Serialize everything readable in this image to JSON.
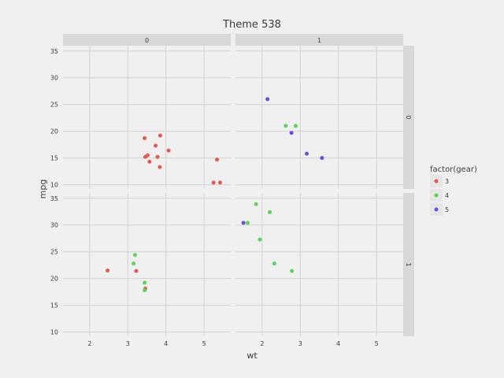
{
  "chart_data": {
    "type": "scatter",
    "title": "Theme 538",
    "xlabel": "wt",
    "ylabel": "mpg",
    "legend_title": "factor(gear)",
    "legend_position": "right",
    "grid": true,
    "xlim": [
      1.3,
      5.7
    ],
    "ylim": [
      9.2,
      36.0
    ],
    "x_ticks": [
      2,
      3,
      4,
      5
    ],
    "y_ticks": [
      10,
      15,
      20,
      25,
      30,
      35
    ],
    "col_facet_labels": [
      "0",
      "1"
    ],
    "row_facet_labels": [
      "0",
      "1"
    ],
    "series": [
      {
        "name": "3",
        "color": "#e05a50"
      },
      {
        "name": "4",
        "color": "#5ad45a"
      },
      {
        "name": "5",
        "color": "#6a4fd6"
      }
    ],
    "panels": [
      {
        "row": "0",
        "col": "0",
        "points": [
          {
            "wt": 3.44,
            "mpg": 18.7,
            "gear": "3"
          },
          {
            "wt": 3.46,
            "mpg": 15.2,
            "gear": "3"
          },
          {
            "wt": 3.52,
            "mpg": 15.5,
            "gear": "3"
          },
          {
            "wt": 3.57,
            "mpg": 14.3,
            "gear": "3"
          },
          {
            "wt": 3.73,
            "mpg": 17.3,
            "gear": "3"
          },
          {
            "wt": 3.78,
            "mpg": 15.2,
            "gear": "3"
          },
          {
            "wt": 3.84,
            "mpg": 13.3,
            "gear": "3"
          },
          {
            "wt": 3.85,
            "mpg": 19.2,
            "gear": "3"
          },
          {
            "wt": 4.07,
            "mpg": 16.4,
            "gear": "3"
          },
          {
            "wt": 5.25,
            "mpg": 10.4,
            "gear": "3"
          },
          {
            "wt": 5.34,
            "mpg": 14.7,
            "gear": "3"
          },
          {
            "wt": 5.42,
            "mpg": 10.4,
            "gear": "3"
          }
        ]
      },
      {
        "row": "0",
        "col": "1",
        "points": [
          {
            "wt": 2.14,
            "mpg": 26.0,
            "gear": "5"
          },
          {
            "wt": 2.62,
            "mpg": 21.0,
            "gear": "4"
          },
          {
            "wt": 2.88,
            "mpg": 21.0,
            "gear": "4"
          },
          {
            "wt": 2.77,
            "mpg": 19.7,
            "gear": "5"
          },
          {
            "wt": 3.17,
            "mpg": 15.8,
            "gear": "5"
          },
          {
            "wt": 3.57,
            "mpg": 15.0,
            "gear": "5"
          }
        ]
      },
      {
        "row": "1",
        "col": "0",
        "points": [
          {
            "wt": 2.47,
            "mpg": 21.5,
            "gear": "3"
          },
          {
            "wt": 3.19,
            "mpg": 24.4,
            "gear": "4"
          },
          {
            "wt": 3.15,
            "mpg": 22.8,
            "gear": "4"
          },
          {
            "wt": 3.22,
            "mpg": 21.4,
            "gear": "3"
          },
          {
            "wt": 3.44,
            "mpg": 19.2,
            "gear": "4"
          },
          {
            "wt": 3.46,
            "mpg": 18.1,
            "gear": "3"
          },
          {
            "wt": 3.44,
            "mpg": 17.8,
            "gear": "4"
          }
        ]
      },
      {
        "row": "1",
        "col": "1",
        "points": [
          {
            "wt": 1.51,
            "mpg": 30.4,
            "gear": "5"
          },
          {
            "wt": 1.62,
            "mpg": 30.4,
            "gear": "4"
          },
          {
            "wt": 1.84,
            "mpg": 33.9,
            "gear": "4"
          },
          {
            "wt": 2.2,
            "mpg": 32.4,
            "gear": "4"
          },
          {
            "wt": 1.94,
            "mpg": 27.3,
            "gear": "4"
          },
          {
            "wt": 2.32,
            "mpg": 22.8,
            "gear": "4"
          },
          {
            "wt": 2.78,
            "mpg": 21.4,
            "gear": "4"
          }
        ]
      }
    ]
  }
}
